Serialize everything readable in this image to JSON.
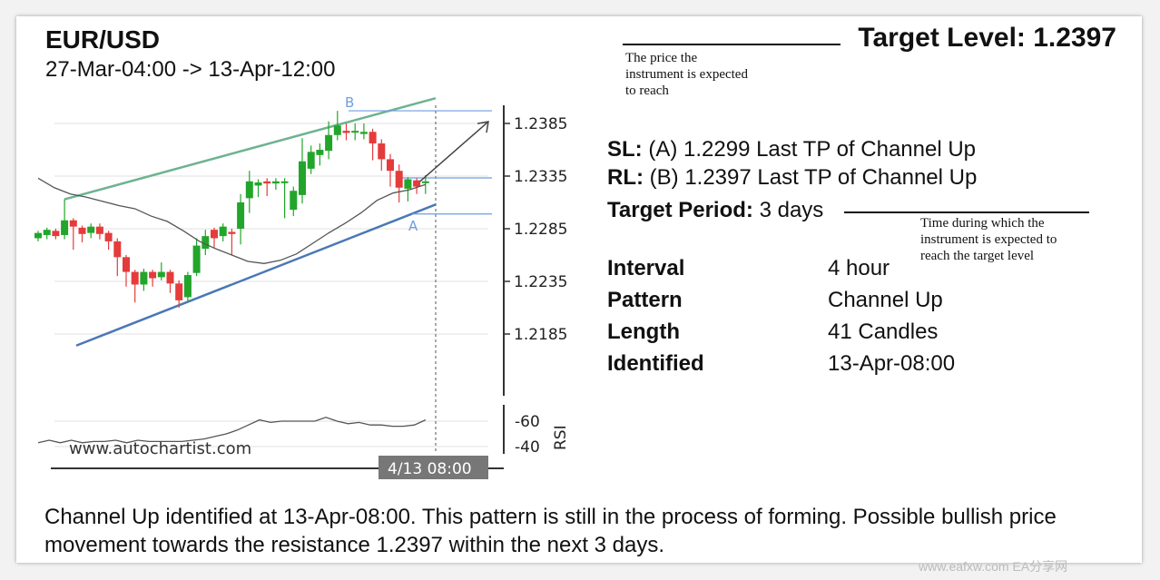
{
  "header": {
    "symbol": "EUR/USD",
    "range": "27-Mar-04:00 -> 13-Apr-12:00",
    "target_label": "Target Level:",
    "target_value": "1.2397"
  },
  "notes": {
    "target": "The price the\ninstrument is expected\nto reach",
    "period": "Time during which the\ninstrument is expected to\nreach the target level"
  },
  "levels": {
    "sl_label": "SL:",
    "sl_text": "(A) 1.2299 Last TP of Channel Up",
    "rl_label": "RL:",
    "rl_text": "(B) 1.2397 Last TP of Channel Up",
    "period_label": "Target Period:",
    "period_text": "3 days"
  },
  "details": [
    {
      "k": "Interval",
      "v": "4 hour"
    },
    {
      "k": "Pattern",
      "v": "Channel Up"
    },
    {
      "k": "Length",
      "v": "41 Candles"
    },
    {
      "k": "Identified",
      "v": "13-Apr-08:00"
    }
  ],
  "description": "Channel Up identified at 13-Apr-08:00. This pattern is still in the process of forming. Possible bullish price movement towards the resistance 1.2397 within the next 3 days.",
  "watermark": "www.eafxw.com  EA分享网",
  "chart_data": {
    "type": "candlestick",
    "ylim": [
      1.2162,
      1.2416
    ],
    "y_ticks": [
      "1.2385",
      "1.2335",
      "1.2285",
      "1.2235",
      "1.2185"
    ],
    "point_labels": [
      "B",
      "A"
    ],
    "rsi_ticks": [
      "60",
      "40"
    ],
    "rsi_label": "RSI",
    "x_marker": "4/13 08:00",
    "site": "www.autochartist.com",
    "up": "#22a52a",
    "down": "#e53b3b",
    "candles": [
      [
        1.2276,
        1.2281,
        1.2273,
        1.2283
      ],
      [
        1.2279,
        1.2284,
        1.2275,
        1.2286
      ],
      [
        1.2283,
        1.2278,
        1.2275,
        1.2285
      ],
      [
        1.2279,
        1.2293,
        1.2275,
        1.2313
      ],
      [
        1.2293,
        1.2287,
        1.2265,
        1.2295
      ],
      [
        1.2286,
        1.228,
        1.2272,
        1.2288
      ],
      [
        1.2281,
        1.2287,
        1.2276,
        1.229
      ],
      [
        1.2287,
        1.228,
        1.2275,
        1.229
      ],
      [
        1.2281,
        1.2273,
        1.2265,
        1.2283
      ],
      [
        1.2273,
        1.2258,
        1.224,
        1.2276
      ],
      [
        1.2258,
        1.2244,
        1.223,
        1.226
      ],
      [
        1.2244,
        1.2232,
        1.2215,
        1.2246
      ],
      [
        1.2232,
        1.2244,
        1.2226,
        1.2247
      ],
      [
        1.2244,
        1.2238,
        1.223,
        1.2246
      ],
      [
        1.2239,
        1.2244,
        1.2236,
        1.2253
      ],
      [
        1.2244,
        1.2233,
        1.2224,
        1.2246
      ],
      [
        1.2233,
        1.2217,
        1.221,
        1.2236
      ],
      [
        1.222,
        1.2241,
        1.2215,
        1.2244
      ],
      [
        1.2243,
        1.2269,
        1.224,
        1.2276
      ],
      [
        1.2266,
        1.2278,
        1.226,
        1.2284
      ],
      [
        1.2284,
        1.2276,
        1.2267,
        1.2286
      ],
      [
        1.2278,
        1.2287,
        1.2273,
        1.229
      ],
      [
        1.2282,
        1.228,
        1.226,
        1.2285
      ],
      [
        1.2285,
        1.231,
        1.227,
        1.2318
      ],
      [
        1.2314,
        1.233,
        1.23,
        1.234
      ],
      [
        1.2326,
        1.2329,
        1.2315,
        1.2332
      ],
      [
        1.233,
        1.2328,
        1.2316,
        1.2333
      ],
      [
        1.2328,
        1.233,
        1.2322,
        1.2333
      ],
      [
        1.2329,
        1.233,
        1.2295,
        1.2333
      ],
      [
        1.2303,
        1.2321,
        1.2297,
        1.2325
      ],
      [
        1.2317,
        1.2349,
        1.2309,
        1.2371
      ],
      [
        1.2342,
        1.2358,
        1.2337,
        1.2364
      ],
      [
        1.2355,
        1.236,
        1.2345,
        1.2366
      ],
      [
        1.2359,
        1.2374,
        1.2351,
        1.2387
      ],
      [
        1.2374,
        1.2383,
        1.2369,
        1.2397
      ],
      [
        1.2378,
        1.2376,
        1.2369,
        1.2385
      ],
      [
        1.2377,
        1.2378,
        1.2369,
        1.2385
      ],
      [
        1.2375,
        1.2377,
        1.237,
        1.2385
      ],
      [
        1.2377,
        1.2366,
        1.235,
        1.238
      ],
      [
        1.2366,
        1.2351,
        1.234,
        1.237
      ],
      [
        1.2351,
        1.234,
        1.2325,
        1.2356
      ],
      [
        1.234,
        1.2324,
        1.231,
        1.2346
      ],
      [
        1.2323,
        1.2332,
        1.2311,
        1.2334
      ],
      [
        1.2331,
        1.2325,
        1.2318,
        1.2333
      ],
      [
        1.233,
        1.233,
        1.2318,
        1.2336
      ]
    ],
    "ma": [
      1.2333,
      1.2324,
      1.2318,
      1.2315,
      1.2311,
      1.2307,
      1.2304,
      1.2297,
      1.2292,
      1.2283,
      1.2273,
      1.2266,
      1.226,
      1.2254,
      1.2252,
      1.2255,
      1.2261,
      1.2271,
      1.2281,
      1.229,
      1.23,
      1.2312,
      1.2319,
      1.2322,
      1.2327
    ],
    "rsi": [
      43,
      45,
      43,
      45,
      43,
      44,
      44,
      45,
      43,
      45,
      44,
      44,
      44,
      44,
      45,
      46,
      48,
      50,
      53,
      57,
      61,
      59,
      60,
      60,
      60,
      60,
      63,
      60,
      58,
      59,
      57,
      57,
      56,
      56,
      57,
      61
    ],
    "upper": [
      1.2313,
      1.2409
    ],
    "lower": [
      1.2174,
      1.2308
    ],
    "arrow": [
      1.233,
      1.2397
    ]
  }
}
